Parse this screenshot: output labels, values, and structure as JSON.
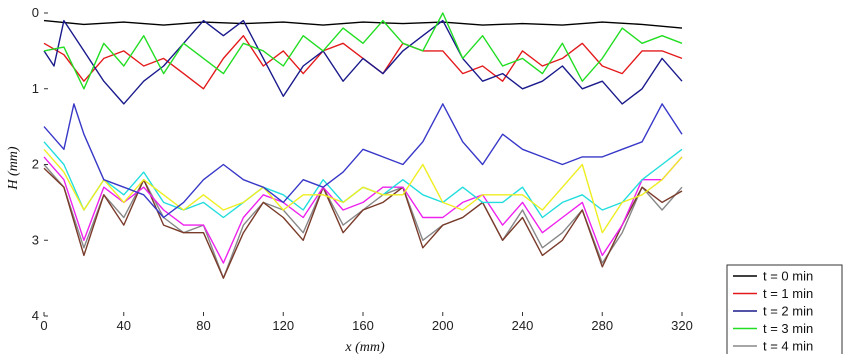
{
  "chart_data": {
    "type": "line",
    "xlabel": "x (mm)",
    "ylabel": "H (mm)",
    "xlim": [
      0,
      320
    ],
    "ylim": [
      0,
      4
    ],
    "y_inverted": true,
    "x_ticks": [
      "0",
      "40",
      "80",
      "120",
      "160",
      "200",
      "240",
      "280",
      "320"
    ],
    "y_ticks": [
      "0",
      "1",
      "2",
      "3",
      "4"
    ],
    "grid": false,
    "legend_position": "bottom-right, outside",
    "series": [
      {
        "name": "t = 0 min",
        "color": "#000000",
        "x": [
          0,
          20,
          40,
          60,
          80,
          100,
          120,
          140,
          160,
          180,
          200,
          220,
          240,
          260,
          280,
          300,
          320
        ],
        "y": [
          0.1,
          0.15,
          0.12,
          0.16,
          0.12,
          0.14,
          0.12,
          0.16,
          0.12,
          0.14,
          0.12,
          0.16,
          0.14,
          0.16,
          0.12,
          0.15,
          0.2
        ]
      },
      {
        "name": "t = 1 min",
        "color": "#e31a1c",
        "x": [
          0,
          10,
          20,
          30,
          40,
          50,
          60,
          70,
          80,
          90,
          100,
          110,
          120,
          130,
          140,
          150,
          160,
          170,
          180,
          190,
          200,
          210,
          220,
          230,
          240,
          250,
          260,
          270,
          280,
          290,
          300,
          310,
          320
        ],
        "y": [
          0.4,
          0.55,
          0.9,
          0.6,
          0.5,
          0.7,
          0.6,
          0.8,
          1.0,
          0.6,
          0.3,
          0.7,
          0.5,
          0.8,
          0.5,
          0.4,
          0.6,
          0.8,
          0.4,
          0.5,
          0.5,
          0.8,
          0.7,
          0.9,
          0.5,
          0.7,
          0.6,
          0.4,
          0.7,
          0.8,
          0.5,
          0.5,
          0.6
        ]
      },
      {
        "name": "t = 2 min",
        "color": "#1a1a8c",
        "x": [
          0,
          5,
          10,
          20,
          30,
          40,
          50,
          60,
          70,
          80,
          90,
          100,
          110,
          120,
          130,
          140,
          150,
          160,
          170,
          180,
          190,
          200,
          210,
          220,
          230,
          240,
          250,
          260,
          270,
          280,
          290,
          300,
          310,
          320
        ],
        "y": [
          0.5,
          0.7,
          0.1,
          0.5,
          0.9,
          1.2,
          0.9,
          0.7,
          0.4,
          0.1,
          0.3,
          0.1,
          0.6,
          1.1,
          0.7,
          0.5,
          0.9,
          0.6,
          0.8,
          0.5,
          0.3,
          0.1,
          0.6,
          0.9,
          0.8,
          1.0,
          0.9,
          0.7,
          1.0,
          0.9,
          1.2,
          1.0,
          0.6,
          0.9
        ]
      },
      {
        "name": "t = 3 min",
        "color": "#22dd22",
        "x": [
          0,
          10,
          20,
          30,
          40,
          50,
          60,
          70,
          80,
          90,
          100,
          110,
          120,
          130,
          140,
          150,
          160,
          170,
          180,
          190,
          200,
          210,
          220,
          230,
          240,
          250,
          260,
          270,
          280,
          290,
          300,
          310,
          320
        ],
        "y": [
          0.5,
          0.45,
          1.0,
          0.4,
          0.7,
          0.3,
          0.8,
          0.4,
          0.6,
          0.8,
          0.4,
          0.5,
          0.7,
          0.3,
          0.5,
          0.2,
          0.4,
          0.1,
          0.4,
          0.5,
          0.0,
          0.6,
          0.3,
          0.7,
          0.6,
          0.8,
          0.4,
          0.9,
          0.6,
          0.2,
          0.4,
          0.3,
          0.4
        ]
      },
      {
        "name": "t = 4 min",
        "color": "#888888",
        "x": [
          0,
          10,
          20,
          30,
          40,
          50,
          60,
          70,
          80,
          90,
          100,
          110,
          120,
          130,
          140,
          150,
          160,
          170,
          180,
          190,
          200,
          210,
          220,
          230,
          240,
          250,
          260,
          270,
          280,
          290,
          300,
          310,
          320
        ],
        "y": [
          2.0,
          2.3,
          3.1,
          2.4,
          2.7,
          2.2,
          2.7,
          2.9,
          2.8,
          3.5,
          2.8,
          2.5,
          2.6,
          2.9,
          2.3,
          2.8,
          2.6,
          2.4,
          2.3,
          3.0,
          2.8,
          2.7,
          2.5,
          3.0,
          2.6,
          3.1,
          2.9,
          2.6,
          3.3,
          2.9,
          2.3,
          2.6,
          2.3
        ]
      },
      {
        "name": "",
        "color": "#7a3b2a",
        "x": [
          0,
          10,
          20,
          30,
          40,
          50,
          60,
          70,
          80,
          90,
          100,
          110,
          120,
          130,
          140,
          150,
          160,
          170,
          180,
          190,
          200,
          210,
          220,
          230,
          240,
          250,
          260,
          270,
          280,
          290,
          300,
          310,
          320
        ],
        "y": [
          2.05,
          2.3,
          3.2,
          2.4,
          2.8,
          2.2,
          2.8,
          2.9,
          2.9,
          3.5,
          2.9,
          2.5,
          2.7,
          3.0,
          2.3,
          2.9,
          2.6,
          2.5,
          2.3,
          3.1,
          2.8,
          2.7,
          2.5,
          3.0,
          2.7,
          3.2,
          3.0,
          2.6,
          3.35,
          2.8,
          2.3,
          2.5,
          2.35
        ]
      },
      {
        "name": "",
        "color": "#ee22ee",
        "x": [
          0,
          10,
          20,
          30,
          40,
          50,
          60,
          70,
          80,
          90,
          100,
          110,
          120,
          130,
          140,
          150,
          160,
          170,
          180,
          190,
          200,
          210,
          220,
          230,
          240,
          250,
          260,
          270,
          280,
          290,
          300,
          310,
          320
        ],
        "y": [
          1.9,
          2.2,
          3.0,
          2.3,
          2.5,
          2.3,
          2.6,
          2.8,
          2.8,
          3.3,
          2.7,
          2.4,
          2.5,
          2.7,
          2.3,
          2.6,
          2.5,
          2.3,
          2.3,
          2.7,
          2.7,
          2.5,
          2.4,
          2.8,
          2.5,
          2.9,
          2.7,
          2.5,
          3.2,
          2.8,
          2.2,
          2.2,
          1.9
        ]
      },
      {
        "name": "",
        "color": "#22dddd",
        "x": [
          0,
          10,
          20,
          30,
          40,
          50,
          60,
          70,
          80,
          90,
          100,
          110,
          120,
          130,
          140,
          150,
          160,
          170,
          180,
          190,
          200,
          210,
          220,
          230,
          240,
          250,
          260,
          270,
          280,
          290,
          300,
          310,
          320
        ],
        "y": [
          1.7,
          2.0,
          2.6,
          2.2,
          2.4,
          2.1,
          2.5,
          2.6,
          2.5,
          2.7,
          2.5,
          2.3,
          2.4,
          2.6,
          2.2,
          2.5,
          2.3,
          2.4,
          2.2,
          2.4,
          2.5,
          2.3,
          2.5,
          2.5,
          2.3,
          2.7,
          2.5,
          2.4,
          2.6,
          2.5,
          2.2,
          2.0,
          1.8
        ]
      },
      {
        "name": "",
        "color": "#eeee22",
        "x": [
          0,
          10,
          20,
          30,
          40,
          50,
          60,
          70,
          80,
          90,
          100,
          110,
          120,
          130,
          140,
          150,
          160,
          170,
          180,
          190,
          200,
          210,
          220,
          230,
          240,
          250,
          260,
          270,
          280,
          290,
          300,
          310,
          320
        ],
        "y": [
          1.8,
          2.1,
          2.6,
          2.2,
          2.5,
          2.2,
          2.4,
          2.6,
          2.4,
          2.6,
          2.5,
          2.3,
          2.6,
          2.4,
          2.4,
          2.5,
          2.3,
          2.4,
          2.4,
          2.0,
          2.5,
          2.6,
          2.4,
          2.4,
          2.4,
          2.6,
          2.3,
          2.0,
          2.9,
          2.5,
          2.4,
          2.2,
          1.9
        ]
      },
      {
        "name": "",
        "color": "#3838c8",
        "x": [
          0,
          10,
          15,
          20,
          30,
          40,
          50,
          60,
          70,
          80,
          90,
          100,
          110,
          120,
          130,
          140,
          150,
          160,
          170,
          180,
          190,
          200,
          210,
          220,
          230,
          240,
          250,
          260,
          270,
          280,
          290,
          300,
          310,
          320
        ],
        "y": [
          1.5,
          1.8,
          1.2,
          1.6,
          2.2,
          2.3,
          2.4,
          2.7,
          2.5,
          2.2,
          2.0,
          2.2,
          2.3,
          2.5,
          2.2,
          2.3,
          2.1,
          1.8,
          1.9,
          2.0,
          1.7,
          1.2,
          1.7,
          2.0,
          1.6,
          1.8,
          1.9,
          2.0,
          1.9,
          1.9,
          1.8,
          1.7,
          1.2,
          1.6
        ]
      }
    ]
  }
}
